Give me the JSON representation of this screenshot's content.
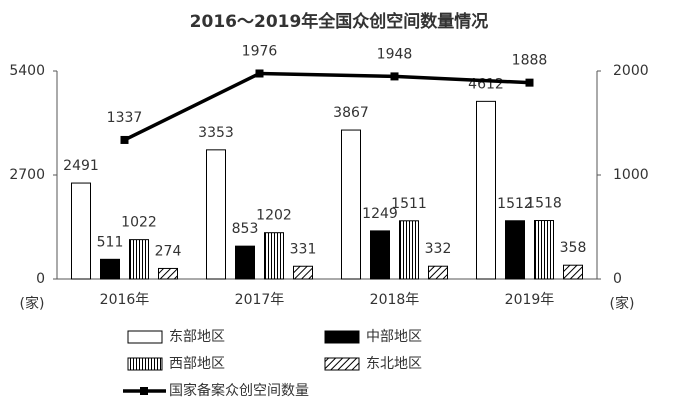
{
  "chart_data": {
    "type": "bar",
    "title": "2016～2019年全国众创空间数量情况",
    "categories": [
      "2016年",
      "2017年",
      "2018年",
      "2019年"
    ],
    "ylabel": "(家)",
    "y2label": "(家)",
    "ylim": [
      0,
      5400
    ],
    "yticks": [
      0,
      2700,
      5400
    ],
    "y2lim": [
      0,
      2000
    ],
    "y2ticks": [
      0,
      1000,
      2000
    ],
    "series": [
      {
        "name": "东部地区",
        "color": "#ffffff",
        "values": [
          2491,
          3353,
          3867,
          4612
        ]
      },
      {
        "name": "中部地区",
        "color": "#000000",
        "values": [
          511,
          853,
          1249,
          1512
        ]
      },
      {
        "name": "西部地区",
        "color": "#ffffff",
        "pattern": "vertical",
        "values": [
          1022,
          1202,
          1511,
          1518
        ]
      },
      {
        "name": "东北地区",
        "color": "#ffffff",
        "pattern": "diagonal",
        "values": [
          274,
          331,
          332,
          358
        ]
      },
      {
        "name": "国家备案众创空间数量",
        "color": "#000000",
        "type": "line",
        "axis": "y2",
        "values": [
          1337,
          1976,
          1948,
          1888
        ]
      }
    ]
  }
}
